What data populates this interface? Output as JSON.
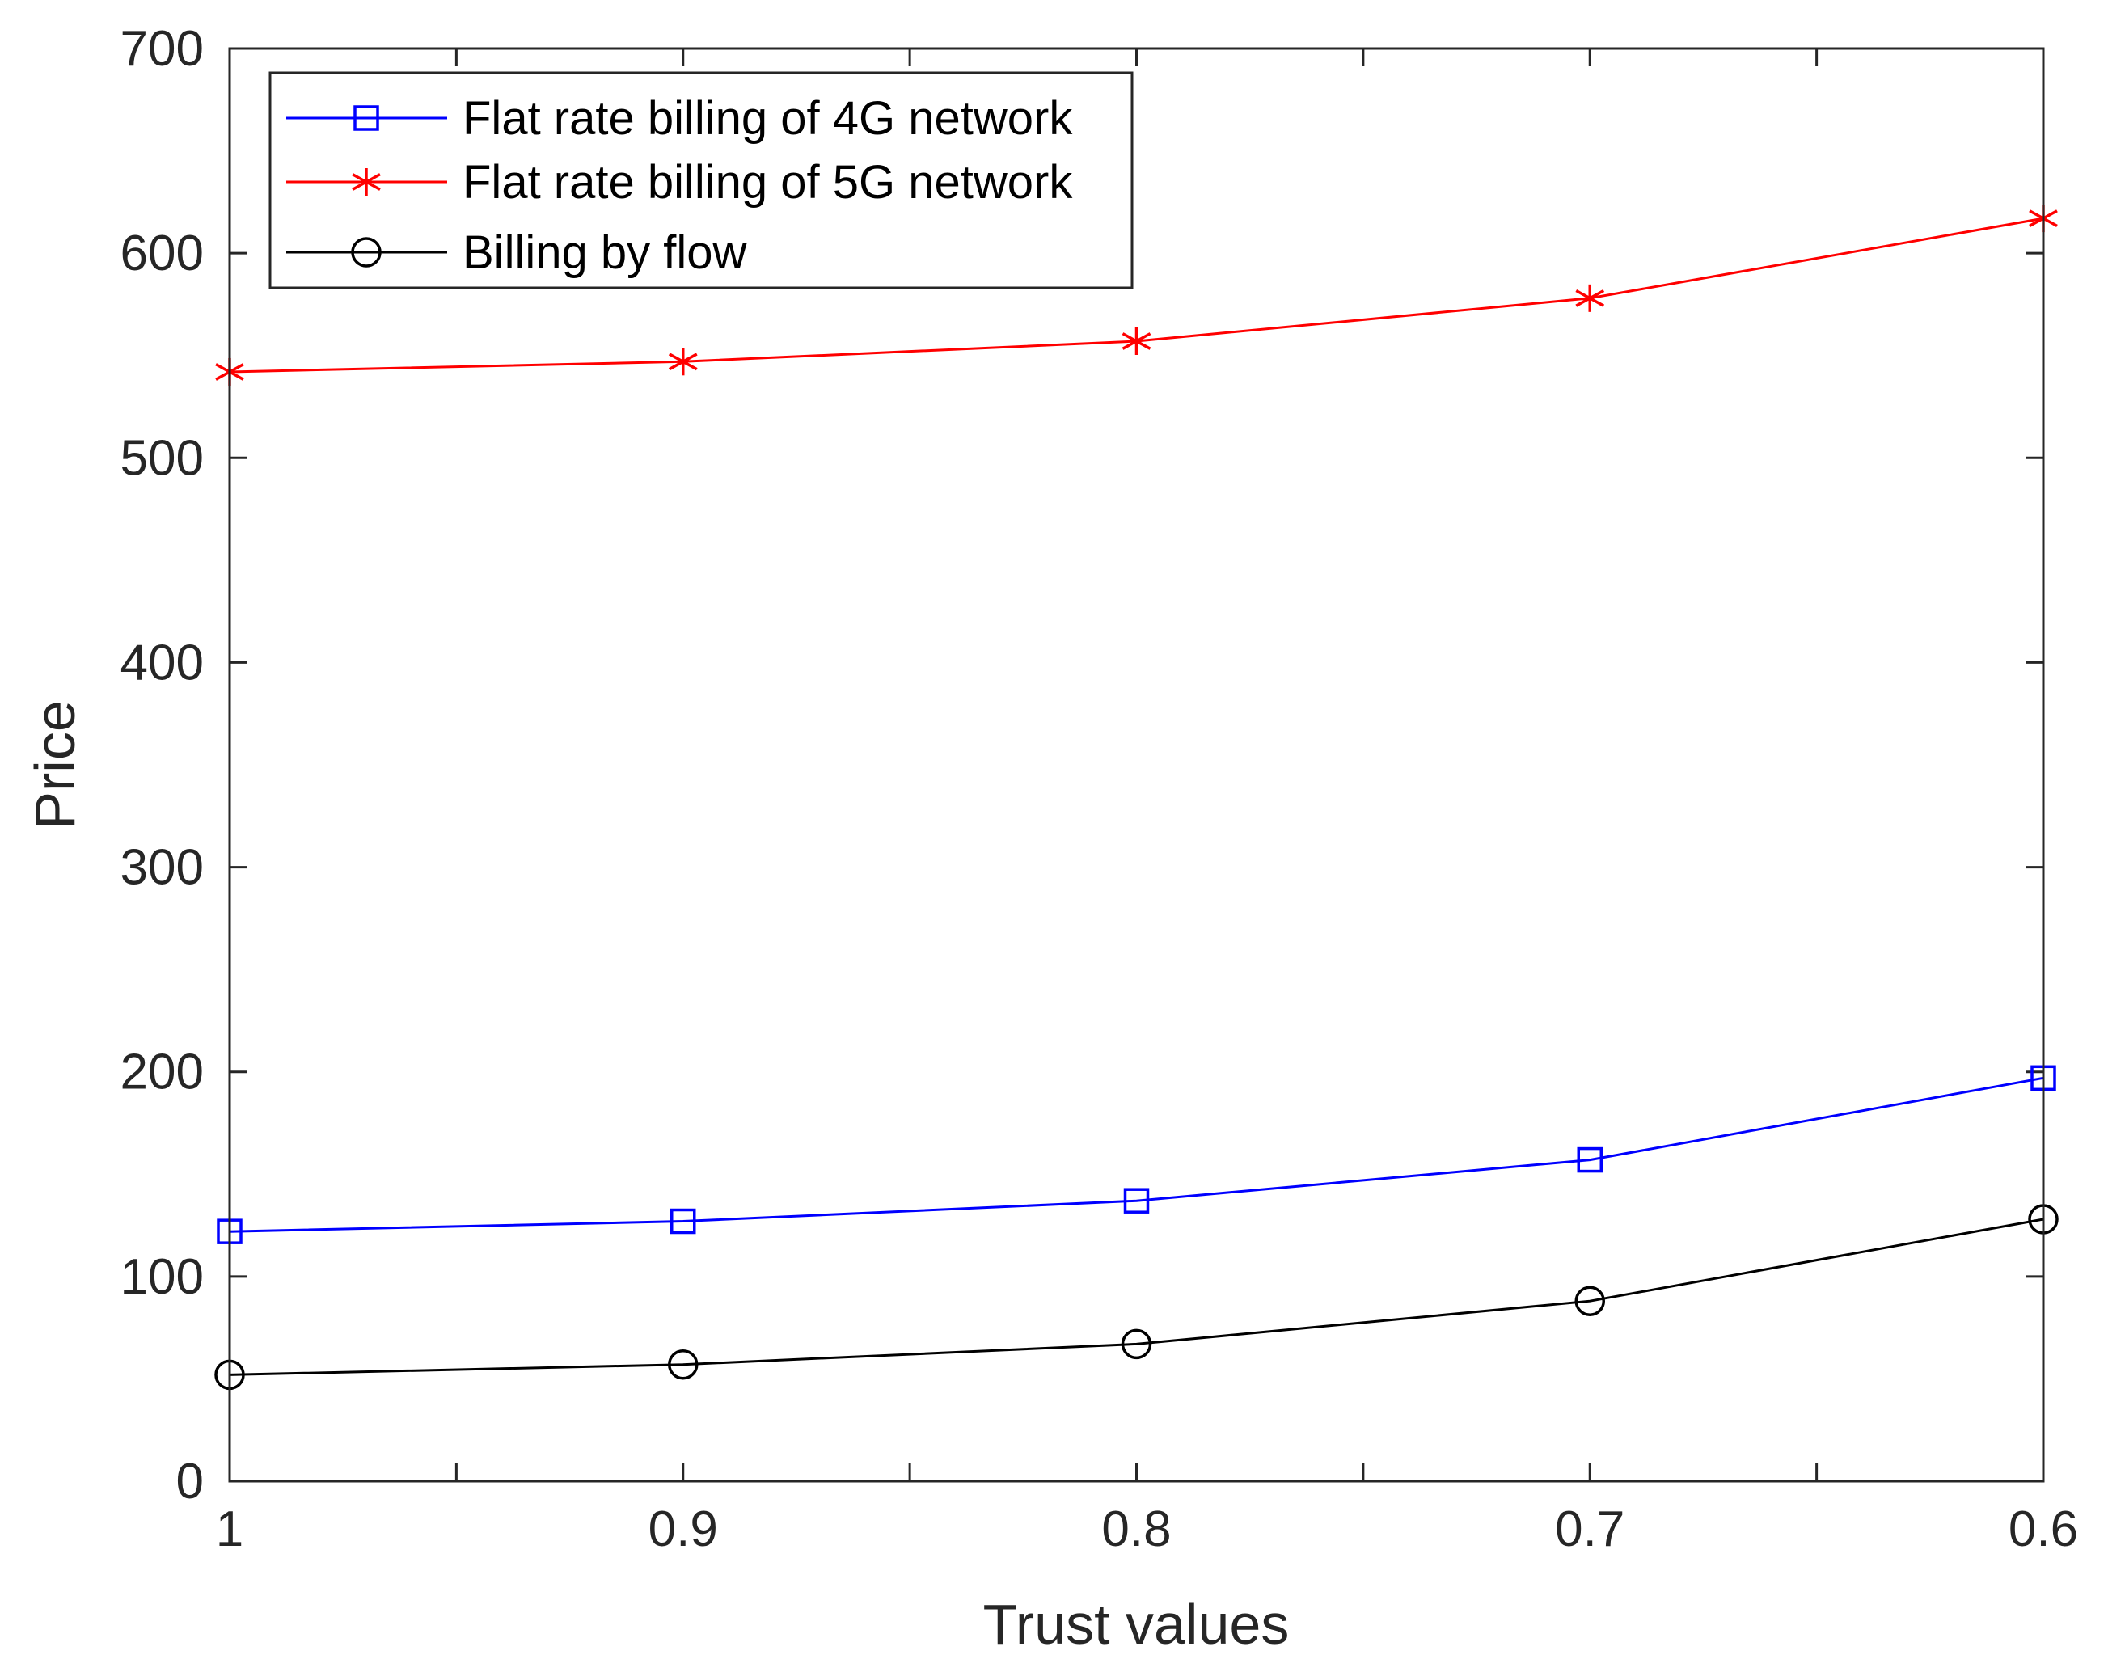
{
  "chart_data": {
    "type": "line",
    "title": "",
    "xlabel": "Trust values",
    "ylabel": "Price",
    "x": [
      1,
      0.9,
      0.8,
      0.7,
      0.6
    ],
    "x_tick_labels": [
      "1",
      "0.9",
      "0.8",
      "0.7",
      "0.6"
    ],
    "xlim": [
      1,
      0.6
    ],
    "x_reversed": true,
    "ylim": [
      0,
      700
    ],
    "y_ticks": [
      0,
      100,
      200,
      300,
      400,
      500,
      600,
      700
    ],
    "y_tick_labels": [
      "0",
      "100",
      "200",
      "300",
      "400",
      "500",
      "600",
      "700"
    ],
    "grid": false,
    "legend_position": "top-left",
    "series": [
      {
        "name": "Flat rate billing of 4G network",
        "color": "#0000ff",
        "marker": "square",
        "values": [
          122,
          127,
          137,
          157,
          197
        ]
      },
      {
        "name": "Flat rate billing of 5G network",
        "color": "#ff0000",
        "marker": "asterisk",
        "values": [
          542,
          547,
          557,
          578,
          617
        ]
      },
      {
        "name": "Billing by flow",
        "color": "#000000",
        "marker": "circle",
        "values": [
          52,
          57,
          67,
          88,
          128
        ]
      }
    ]
  }
}
